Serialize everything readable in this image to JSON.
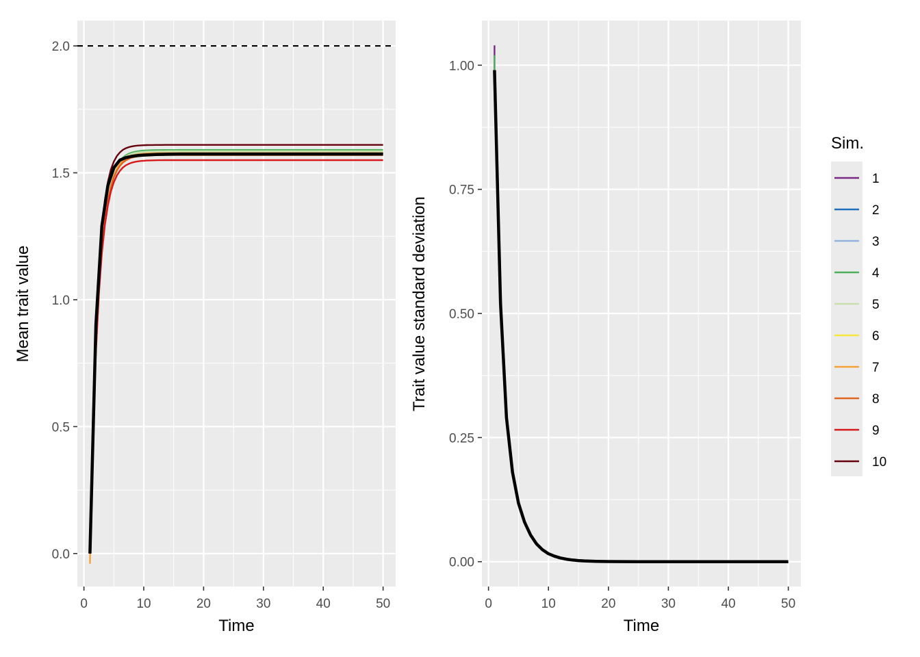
{
  "chart_data": [
    {
      "type": "line",
      "xlabel": "Time",
      "ylabel": "Mean trait value",
      "xlim": [
        -1.1,
        52.1
      ],
      "ylim": [
        -0.13,
        2.1
      ],
      "xticks": [
        0,
        10,
        20,
        30,
        40,
        50
      ],
      "yticks": [
        0.0,
        0.5,
        1.0,
        1.5,
        2.0
      ],
      "ytick_labels": [
        "0.0",
        "0.5",
        "1.0",
        "1.5",
        "2.0"
      ],
      "grid": true,
      "reference_line": {
        "y": 2.0,
        "style": "dashed",
        "color": "#000000"
      },
      "series": [
        {
          "name": "1",
          "color": "#762A83",
          "start": 0.0,
          "plateau": 1.575,
          "rate": 0.72
        },
        {
          "name": "2",
          "color": "#1F6FBF",
          "start": 0.0,
          "plateau": 1.577,
          "rate": 0.72
        },
        {
          "name": "3",
          "color": "#8FB3DE",
          "start": 0.0,
          "plateau": 1.58,
          "rate": 0.72
        },
        {
          "name": "4",
          "color": "#4DAF5A",
          "start": 0.0,
          "plateau": 1.59,
          "rate": 0.72
        },
        {
          "name": "5",
          "color": "#C7E0AE",
          "start": 0.0,
          "plateau": 1.585,
          "rate": 0.72
        },
        {
          "name": "6",
          "color": "#F5E83A",
          "start": 0.0,
          "plateau": 1.572,
          "rate": 0.72
        },
        {
          "name": "7",
          "color": "#F5A13A",
          "start": -0.04,
          "plateau": 1.578,
          "rate": 0.72
        },
        {
          "name": "8",
          "color": "#E0651F",
          "start": 0.0,
          "plateau": 1.57,
          "rate": 0.72
        },
        {
          "name": "9",
          "color": "#D7191C",
          "start": 0.0,
          "plateau": 1.55,
          "rate": 0.72
        },
        {
          "name": "10",
          "color": "#67000D",
          "start": 0.0,
          "plateau": 1.61,
          "rate": 0.8
        }
      ],
      "mean_series": {
        "color": "#000000",
        "x": [
          1,
          2,
          3,
          4,
          5,
          6,
          7,
          8,
          9,
          10,
          12,
          14,
          16,
          18,
          20,
          25,
          30,
          35,
          40,
          45,
          50
        ],
        "y": [
          0.0,
          0.9,
          1.29,
          1.45,
          1.52,
          1.55,
          1.56,
          1.565,
          1.568,
          1.57,
          1.572,
          1.573,
          1.574,
          1.574,
          1.574,
          1.574,
          1.574,
          1.574,
          1.574,
          1.574,
          1.574
        ]
      }
    },
    {
      "type": "line",
      "xlabel": "Time",
      "ylabel": "Trait value standard deviation",
      "xlim": [
        -1.1,
        52.1
      ],
      "ylim": [
        -0.05,
        1.09
      ],
      "xticks": [
        0,
        10,
        20,
        30,
        40,
        50
      ],
      "yticks": [
        0.0,
        0.25,
        0.5,
        0.75,
        1.0
      ],
      "ytick_labels": [
        "0.00",
        "0.25",
        "0.50",
        "0.75",
        "1.00"
      ],
      "grid": true,
      "series_start_values": [
        {
          "name": "1",
          "color": "#762A83",
          "x": 1,
          "y": 1.04
        },
        {
          "name": "4",
          "color": "#4DAF5A",
          "x": 1,
          "y": 1.02
        }
      ],
      "mean_series": {
        "color": "#000000",
        "x": [
          1,
          2,
          3,
          4,
          5,
          6,
          7,
          8,
          9,
          10,
          11,
          12,
          13,
          14,
          15,
          16,
          18,
          20,
          25,
          30,
          35,
          40,
          45,
          50
        ],
        "y": [
          0.99,
          0.52,
          0.29,
          0.18,
          0.118,
          0.08,
          0.054,
          0.036,
          0.024,
          0.016,
          0.011,
          0.0075,
          0.005,
          0.0034,
          0.0023,
          0.0015,
          0.0007,
          0.0003,
          0.0,
          0.0,
          0.0,
          0.0,
          0.0,
          0.0
        ]
      }
    }
  ],
  "legend": {
    "title": "Sim.",
    "position": "right",
    "items": [
      {
        "label": "1",
        "color": "#762A83"
      },
      {
        "label": "2",
        "color": "#1F6FBF"
      },
      {
        "label": "3",
        "color": "#8FB3DE"
      },
      {
        "label": "4",
        "color": "#4DAF5A"
      },
      {
        "label": "5",
        "color": "#C7E0AE"
      },
      {
        "label": "6",
        "color": "#F5E83A"
      },
      {
        "label": "7",
        "color": "#F5A13A"
      },
      {
        "label": "8",
        "color": "#E0651F"
      },
      {
        "label": "9",
        "color": "#D7191C"
      },
      {
        "label": "10",
        "color": "#67000D"
      }
    ]
  }
}
